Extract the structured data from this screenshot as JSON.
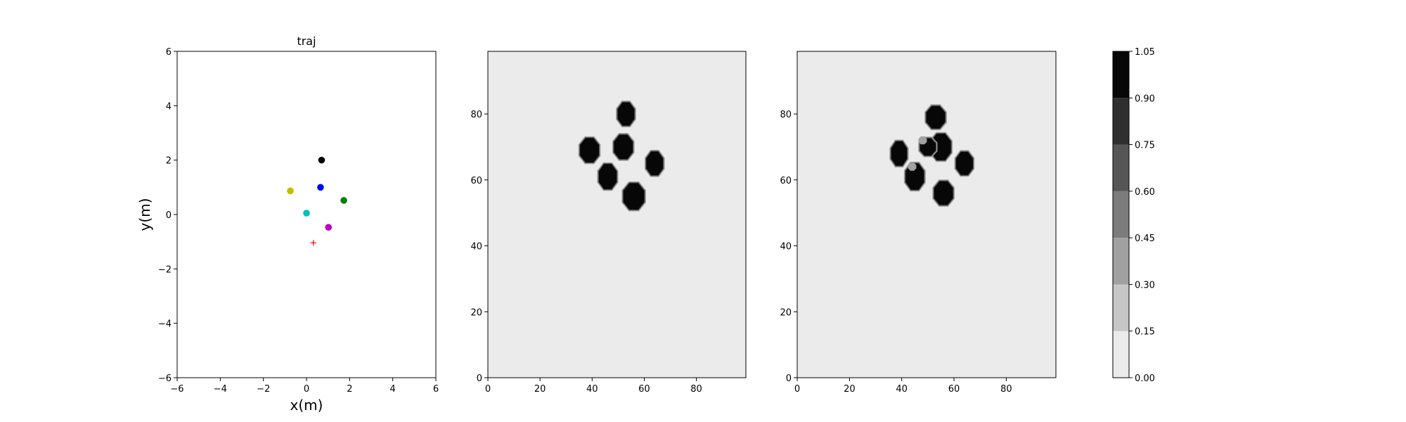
{
  "chart_data": [
    {
      "type": "scatter",
      "title": "traj",
      "xlabel": "x(m)",
      "ylabel": "y(m)",
      "xlim": [
        -6,
        6
      ],
      "ylim": [
        -6,
        6
      ],
      "xticks": [
        "−6",
        "−4",
        "−2",
        "0",
        "2",
        "4",
        "6"
      ],
      "yticks": [
        "−6",
        "−4",
        "−2",
        "0",
        "2",
        "4",
        "6"
      ],
      "points": [
        {
          "x": 0.7,
          "y": 2.0,
          "color": "#000000",
          "marker": "circle"
        },
        {
          "x": -0.75,
          "y": 0.87,
          "color": "#bfbf00",
          "marker": "circle"
        },
        {
          "x": 0.65,
          "y": 1.0,
          "color": "#0000ff",
          "marker": "circle"
        },
        {
          "x": 1.73,
          "y": 0.52,
          "color": "#008000",
          "marker": "circle"
        },
        {
          "x": 0.0,
          "y": 0.05,
          "color": "#00bfbf",
          "marker": "circle"
        },
        {
          "x": 1.02,
          "y": -0.47,
          "color": "#bf00bf",
          "marker": "circle"
        },
        {
          "x": 0.32,
          "y": -1.04,
          "color": "#ff0000",
          "marker": "plus"
        }
      ]
    },
    {
      "type": "heatmap",
      "xlim": [
        0,
        99
      ],
      "ylim": [
        0,
        99
      ],
      "xticks": [
        "0",
        "20",
        "40",
        "60",
        "80"
      ],
      "yticks": [
        "0",
        "20",
        "40",
        "60",
        "80"
      ],
      "background_value": 0.05,
      "blobs": [
        {
          "x": 53,
          "y": 80,
          "rx": 3.2,
          "ry": 3.5,
          "value": 1.0
        },
        {
          "x": 39,
          "y": 69,
          "rx": 3.6,
          "ry": 3.7,
          "value": 1.0
        },
        {
          "x": 52,
          "y": 70,
          "rx": 3.6,
          "ry": 3.7,
          "value": 1.0
        },
        {
          "x": 64,
          "y": 65,
          "rx": 3.2,
          "ry": 3.6,
          "value": 1.0
        },
        {
          "x": 46,
          "y": 61,
          "rx": 3.4,
          "ry": 3.8,
          "value": 1.0
        },
        {
          "x": 56,
          "y": 55,
          "rx": 4.0,
          "ry": 4.0,
          "value": 1.0
        }
      ]
    },
    {
      "type": "heatmap",
      "xlim": [
        0,
        99
      ],
      "ylim": [
        0,
        99
      ],
      "xticks": [
        "0",
        "20",
        "40",
        "60",
        "80"
      ],
      "yticks": [
        "0",
        "20",
        "40",
        "60",
        "80"
      ],
      "background_value": 0.05,
      "blobs": [
        {
          "x": 53,
          "y": 79,
          "rx": 3.6,
          "ry": 3.4,
          "value": 1.0
        },
        {
          "x": 39,
          "y": 68,
          "rx": 3.0,
          "ry": 3.7,
          "value": 1.0
        },
        {
          "x": 55,
          "y": 70,
          "rx": 3.8,
          "ry": 4.0,
          "value": 1.0
        },
        {
          "x": 50,
          "y": 70,
          "rx": 3.0,
          "ry": 2.6,
          "value": 0.9
        },
        {
          "x": 48,
          "y": 72,
          "rx": 1.6,
          "ry": 1.2,
          "value": 0.35
        },
        {
          "x": 64,
          "y": 65,
          "rx": 3.2,
          "ry": 3.5,
          "value": 1.0
        },
        {
          "x": 45,
          "y": 61,
          "rx": 3.5,
          "ry": 4.0,
          "value": 1.0
        },
        {
          "x": 44,
          "y": 64,
          "rx": 1.6,
          "ry": 1.2,
          "value": 0.4
        },
        {
          "x": 56,
          "y": 56,
          "rx": 3.6,
          "ry": 3.6,
          "value": 1.0
        }
      ]
    }
  ],
  "colorbar": {
    "levels": [
      0.0,
      0.15,
      0.3,
      0.45,
      0.6,
      0.75,
      0.9,
      1.05
    ],
    "labels": [
      "0.00",
      "0.15",
      "0.30",
      "0.45",
      "0.60",
      "0.75",
      "0.90",
      "1.05"
    ],
    "colors": [
      "#ebebeb",
      "#c6c6c6",
      "#a1a1a1",
      "#7c7c7c",
      "#565656",
      "#2f2f2f",
      "#070707"
    ]
  }
}
